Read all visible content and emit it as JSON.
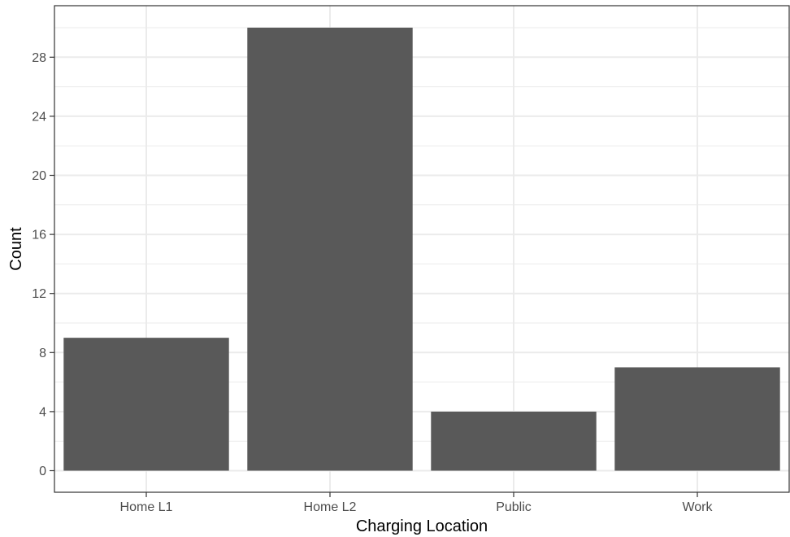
{
  "chart_data": {
    "type": "bar",
    "categories": [
      "Home L1",
      "Home L2",
      "Public",
      "Work"
    ],
    "values": [
      9,
      30,
      4,
      7
    ],
    "title": "",
    "xlabel": "Charging Location",
    "ylabel": "Count",
    "ylim": [
      0,
      30
    ],
    "yticks": [
      0,
      4,
      8,
      12,
      16,
      20,
      24,
      28
    ],
    "grid": true,
    "bar_color": "#595959",
    "grid_color": "#ebebeb",
    "panel_border_color": "#333333"
  }
}
